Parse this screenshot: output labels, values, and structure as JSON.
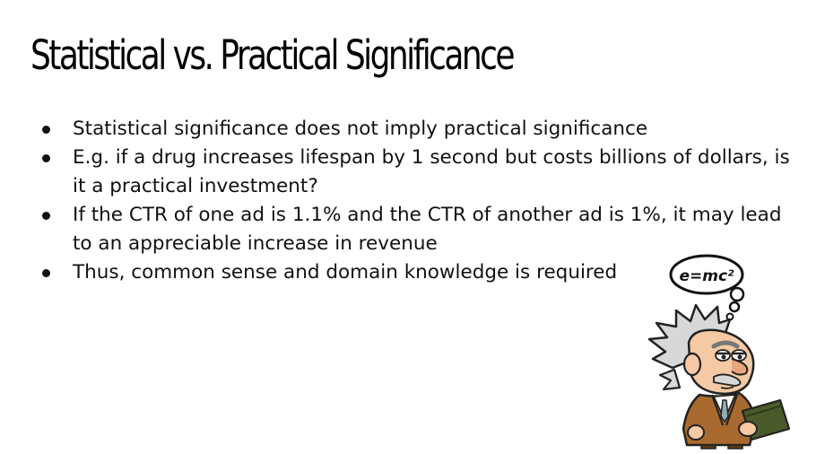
{
  "slide": {
    "title": "Statistical vs. Practical Significance",
    "bullets": [
      "Statistical significance does not imply practical significance",
      "E.g. if a drug increases lifespan by 1 second but costs billions of dollars, is it a practical investment?",
      "If the CTR of one ad is 1.1% and the CTR of another ad is 1%, it may lead to an appreciable increase in revenue",
      "Thus, common sense and domain knowledge is required"
    ],
    "thought_bubble_text": "e=mc²"
  }
}
